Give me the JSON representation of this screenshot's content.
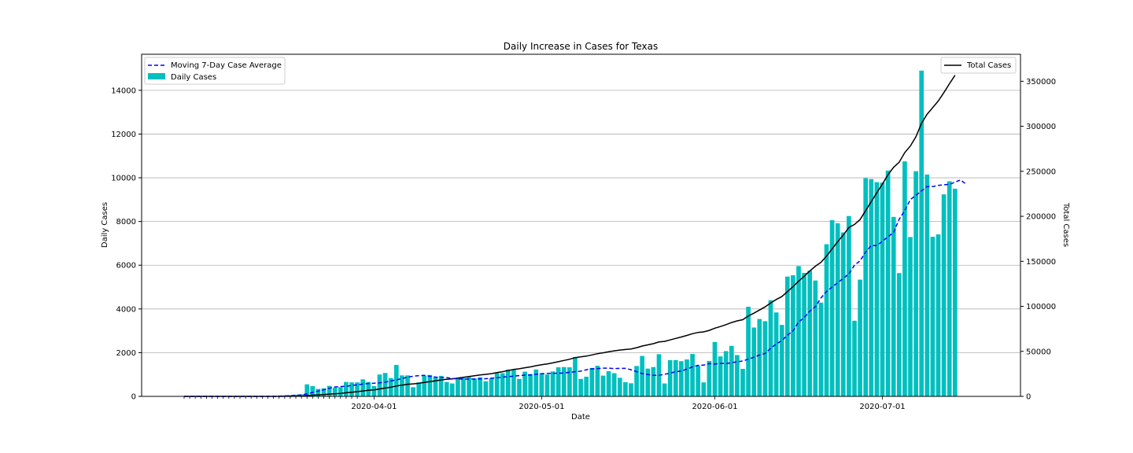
{
  "chart_data": {
    "type": "bar",
    "title": "Daily Increase in Cases for Texas",
    "xlabel": "Date",
    "ylabel": "Daily Cases",
    "y2label": "Total Cases",
    "ylim": [
      0,
      15650
    ],
    "y2lim": [
      0,
      380000
    ],
    "yticks": [
      0,
      2000,
      4000,
      6000,
      8000,
      10000,
      12000,
      14000
    ],
    "y2ticks": [
      0,
      50000,
      100000,
      150000,
      200000,
      250000,
      300000,
      350000
    ],
    "y2tick_labels": [
      "0",
      "50000",
      "100000",
      "150000",
      "200000",
      "250000",
      "300000",
      "350000"
    ],
    "x_start": "2020-02-27",
    "x_end": "2020-07-19",
    "date_ticks": [
      "2020-04-01",
      "2020-05-01",
      "2020-06-01",
      "2020-07-01"
    ],
    "grid": "horizontal",
    "legend_left": "upper left",
    "legend_right": "upper right",
    "colors": {
      "bars": "#00bfbf",
      "average": "#0000ff",
      "total": "#000000"
    },
    "series": [
      {
        "name": "Daily Cases",
        "kind": "bar",
        "values": [
          0,
          0,
          0,
          0,
          0,
          0,
          0,
          0,
          0,
          0,
          0,
          0,
          0,
          0,
          0,
          0,
          10,
          20,
          40,
          60,
          80,
          90,
          550,
          470,
          340,
          370,
          480,
          400,
          420,
          660,
          640,
          640,
          780,
          660,
          470,
          1000,
          1070,
          840,
          1440,
          960,
          960,
          420,
          640,
          950,
          980,
          890,
          940,
          660,
          590,
          810,
          840,
          880,
          820,
          880,
          690,
          830,
          1070,
          1060,
          1230,
          1220,
          800,
          1130,
          1020,
          1230,
          1060,
          1000,
          1140,
          1330,
          1340,
          1330,
          1800,
          800,
          900,
          1300,
          1400,
          950,
          1150,
          1060,
          850,
          650,
          600,
          1390,
          1850,
          1270,
          1340,
          1930,
          590,
          1660,
          1660,
          1610,
          1690,
          1940,
          1410,
          640,
          1620,
          2490,
          1830,
          2070,
          2310,
          1890,
          1260,
          4100,
          3150,
          3540,
          3440,
          4400,
          3840,
          3270,
          5480,
          5540,
          5960,
          5650,
          5750,
          5300,
          4290,
          6960,
          8060,
          7920,
          7500,
          8250,
          3460,
          5340,
          9980,
          9940,
          9800,
          9780,
          10330,
          8210,
          5640,
          10750,
          7290,
          10300,
          14900,
          10150,
          7300,
          7410,
          9240,
          9840,
          9500
        ]
      },
      {
        "name": "Moving 7-Day Case Average",
        "kind": "dashed-line",
        "values": [
          0,
          0,
          0,
          0,
          0,
          0,
          0,
          0,
          0,
          0,
          0,
          0,
          0,
          0,
          0,
          0,
          0,
          10,
          20,
          30,
          50,
          70,
          110,
          180,
          240,
          300,
          370,
          430,
          450,
          460,
          500,
          530,
          560,
          590,
          600,
          620,
          650,
          700,
          760,
          810,
          880,
          920,
          950,
          960,
          920,
          880,
          860,
          860,
          820,
          800,
          790,
          790,
          790,
          800,
          810,
          830,
          850,
          880,
          900,
          930,
          950,
          970,
          980,
          1010,
          1040,
          1050,
          1050,
          1060,
          1070,
          1100,
          1130,
          1150,
          1220,
          1260,
          1270,
          1290,
          1290,
          1270,
          1280,
          1280,
          1220,
          1130,
          1040,
          1000,
          960,
          960,
          1010,
          1060,
          1130,
          1160,
          1250,
          1350,
          1420,
          1430,
          1500,
          1480,
          1510,
          1500,
          1540,
          1580,
          1620,
          1700,
          1790,
          1890,
          1960,
          2200,
          2400,
          2550,
          2800,
          3000,
          3400,
          3600,
          3900,
          4100,
          4500,
          4800,
          5000,
          5200,
          5400,
          5600,
          6000,
          6200,
          6600,
          6900,
          6900,
          7100,
          7300,
          7500,
          8100,
          8500,
          9000,
          9200,
          9400,
          9600,
          9600,
          9650,
          9680,
          9700,
          9800,
          9900,
          9700
        ]
      },
      {
        "name": "Total Cases",
        "kind": "line",
        "axis": "right",
        "values": [
          0,
          0,
          0,
          0,
          0,
          0,
          0,
          0,
          0,
          0,
          0,
          0,
          0,
          0,
          0,
          0,
          10,
          30,
          70,
          130,
          210,
          300,
          850,
          1320,
          1660,
          2030,
          2510,
          2910,
          3330,
          3990,
          4630,
          5270,
          6050,
          6710,
          7180,
          8180,
          9250,
          10090,
          11530,
          12490,
          13450,
          13870,
          14510,
          15460,
          16440,
          17330,
          18270,
          18930,
          19520,
          20330,
          21170,
          22050,
          22870,
          23750,
          24440,
          25270,
          26340,
          27400,
          28630,
          29850,
          30650,
          31780,
          32800,
          34030,
          35090,
          36090,
          37230,
          38560,
          39900,
          41230,
          43030,
          43830,
          44730,
          46030,
          47430,
          48380,
          49530,
          50590,
          51440,
          52090,
          52690,
          54080,
          55930,
          57200,
          58540,
          60470,
          61060,
          62720,
          64380,
          65990,
          67680,
          69620,
          71030,
          71670,
          73290,
          75780,
          77610,
          79680,
          81990,
          83880,
          85140,
          89240,
          92390,
          95930,
          99370,
          103770,
          107610,
          110880,
          116360,
          121900,
          127860,
          133510,
          139260,
          144560,
          148850,
          155810,
          163870,
          171790,
          179290,
          187540,
          191000,
          196340,
          206320,
          216260,
          226060,
          235840,
          246170,
          254380,
          260020,
          270770,
          278060,
          288360,
          303260,
          313410,
          320710,
          328120,
          337360,
          347200,
          356700
        ]
      }
    ]
  }
}
